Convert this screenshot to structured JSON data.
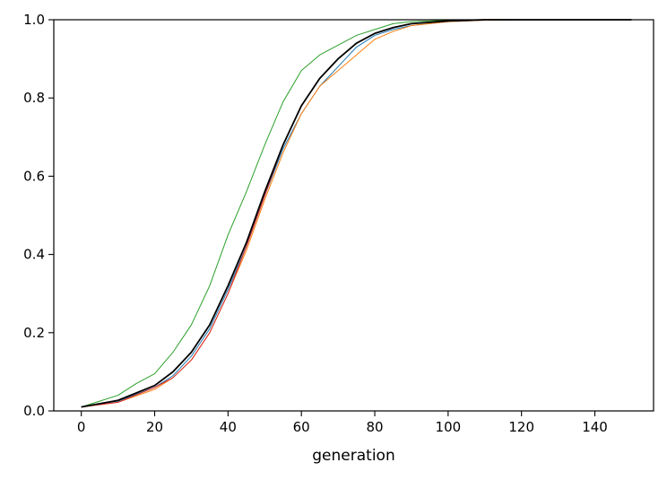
{
  "chart_data": {
    "type": "line",
    "title": "",
    "xlabel": "generation",
    "ylabel": "",
    "xlim": [
      -7.5,
      156
    ],
    "ylim": [
      0,
      1.0
    ],
    "xticks": [
      0,
      20,
      40,
      60,
      80,
      100,
      120,
      140
    ],
    "yticks": [
      0.0,
      0.2,
      0.4,
      0.6,
      0.8,
      1.0
    ],
    "xtick_labels": [
      "0",
      "20",
      "40",
      "60",
      "80",
      "100",
      "120",
      "140"
    ],
    "ytick_labels": [
      "0.0",
      "0.2",
      "0.4",
      "0.6",
      "0.8",
      "1.0"
    ],
    "grid": false,
    "legend": "none",
    "series": [
      {
        "color": "#1f77b4",
        "x": [
          0,
          10,
          20,
          25,
          30,
          35,
          40,
          45,
          50,
          55,
          60,
          65,
          70,
          75,
          80,
          85,
          90,
          100,
          110,
          120,
          130,
          140,
          150
        ],
        "y": [
          0.01,
          0.025,
          0.06,
          0.09,
          0.14,
          0.21,
          0.31,
          0.42,
          0.55,
          0.67,
          0.76,
          0.83,
          0.88,
          0.93,
          0.96,
          0.975,
          0.985,
          0.995,
          0.999,
          1.0,
          1.0,
          1.0,
          1.0
        ]
      },
      {
        "color": "#ff7f0e",
        "x": [
          0,
          10,
          20,
          25,
          30,
          35,
          40,
          45,
          50,
          55,
          60,
          65,
          70,
          75,
          80,
          85,
          90,
          100,
          110,
          120,
          130,
          140,
          150
        ],
        "y": [
          0.01,
          0.022,
          0.055,
          0.085,
          0.13,
          0.2,
          0.3,
          0.41,
          0.54,
          0.66,
          0.76,
          0.83,
          0.87,
          0.91,
          0.95,
          0.97,
          0.985,
          0.995,
          0.999,
          1.0,
          1.0,
          1.0,
          1.0
        ]
      },
      {
        "color": "#2ca02c",
        "x": [
          0,
          10,
          15,
          20,
          25,
          30,
          35,
          40,
          45,
          50,
          55,
          60,
          65,
          70,
          75,
          80,
          85,
          90,
          100,
          110,
          120,
          130,
          140,
          150
        ],
        "y": [
          0.01,
          0.04,
          0.07,
          0.095,
          0.15,
          0.22,
          0.32,
          0.45,
          0.56,
          0.68,
          0.79,
          0.87,
          0.91,
          0.935,
          0.96,
          0.975,
          0.99,
          0.995,
          0.999,
          1.0,
          1.0,
          1.0,
          1.0,
          1.0
        ]
      },
      {
        "color": "#d62728",
        "x": [
          0,
          10,
          20,
          25,
          30,
          35,
          40,
          45,
          50,
          55,
          60,
          65,
          70,
          75,
          80,
          85,
          90,
          100,
          110,
          120,
          130,
          140,
          150
        ],
        "y": [
          0.01,
          0.022,
          0.06,
          0.085,
          0.13,
          0.2,
          0.3,
          0.42,
          0.55,
          0.68,
          0.78,
          0.85,
          0.9,
          0.94,
          0.965,
          0.98,
          0.99,
          0.997,
          1.0,
          1.0,
          1.0,
          1.0,
          1.0
        ]
      },
      {
        "color": "#000000",
        "x": [
          0,
          10,
          20,
          25,
          30,
          35,
          40,
          45,
          50,
          55,
          60,
          65,
          70,
          75,
          80,
          85,
          90,
          100,
          110,
          120,
          130,
          140,
          150
        ],
        "y": [
          0.01,
          0.027,
          0.065,
          0.1,
          0.15,
          0.22,
          0.32,
          0.43,
          0.56,
          0.68,
          0.78,
          0.85,
          0.9,
          0.94,
          0.965,
          0.98,
          0.99,
          0.997,
          1.0,
          1.0,
          1.0,
          1.0,
          1.0
        ]
      }
    ]
  }
}
